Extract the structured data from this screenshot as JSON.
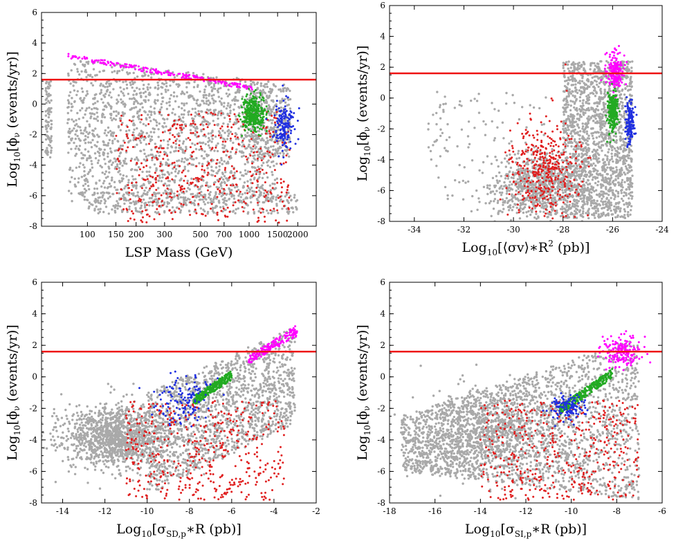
{
  "figure": {
    "colors": {
      "background": "#ffffff",
      "frame": "#000000",
      "bulk": "#a9a9a9",
      "red_points": "#e02020",
      "magenta_points": "#ff00ff",
      "green_points": "#22aa22",
      "blue_points": "#2030e0",
      "threshold_line": "#ee1111"
    }
  },
  "chart_data": [
    {
      "id": "panel-mass",
      "type": "scatter",
      "xscale": "log",
      "xlim": [
        52,
        2600
      ],
      "ylim": [
        -8,
        6
      ],
      "xticks": [
        {
          "v": 100,
          "label": "100"
        },
        {
          "v": 150,
          "label": "150"
        },
        {
          "v": 200,
          "label": "200"
        },
        {
          "v": 300,
          "label": "300"
        },
        {
          "v": 500,
          "label": "500"
        },
        {
          "v": 700,
          "label": "700"
        },
        {
          "v": 1000,
          "label": "1000"
        },
        {
          "v": 1500,
          "label": "1500"
        },
        {
          "v": 2000,
          "label": "2000"
        }
      ],
      "yticks": [
        {
          "v": -8,
          "label": "-8"
        },
        {
          "v": -6,
          "label": "-6"
        },
        {
          "v": -4,
          "label": "-4"
        },
        {
          "v": -2,
          "label": "-2"
        },
        {
          "v": 0,
          "label": "0"
        },
        {
          "v": 2,
          "label": "2"
        },
        {
          "v": 4,
          "label": "4"
        },
        {
          "v": 6,
          "label": "6"
        }
      ],
      "xlabel": "LSP Mass (GeV)",
      "ylabel_base": "Log",
      "ylabel_sub": "10",
      "ylabel_rest": "[ϕ",
      "ylabel_nu": "ν",
      "ylabel_end": " (events/yr)]",
      "threshold": 1.6,
      "series": [
        {
          "name": "bulk",
          "color_key": "bulk",
          "clusters": [
            {
              "x": [
                75,
                1500
              ],
              "y_top": [
                3.0,
                1.4
              ],
              "y_bot": [
                -6.5,
                -6.5
              ],
              "n": 1800,
              "fill": "band"
            },
            {
              "x": [
                100,
                2000
              ],
              "y": [
                -7.2,
                -5.8
              ],
              "n": 300,
              "fill": "box"
            },
            {
              "x": [
                55,
                60
              ],
              "y": [
                -3.5,
                1.5
              ],
              "n": 90,
              "fill": "box"
            },
            {
              "x": [
                1000,
                1800
              ],
              "y": [
                -3.5,
                1.3
              ],
              "n": 250,
              "fill": "box"
            }
          ]
        },
        {
          "name": "red",
          "color_key": "red_points",
          "clusters": [
            {
              "x": [
                150,
                1800
              ],
              "y": [
                -7.8,
                -0.5
              ],
              "n": 450,
              "fill": "box"
            }
          ]
        },
        {
          "name": "magenta",
          "color_key": "magenta_points",
          "clusters": [
            {
              "x": [
                75,
                1050
              ],
              "y_top": [
                3.3,
                1.2
              ],
              "y_bot": [
                3.0,
                0.9
              ],
              "n": 200,
              "fill": "band"
            }
          ]
        },
        {
          "name": "green",
          "color_key": "green_points",
          "clusters": [
            {
              "cx": 1050,
              "cy": -0.6,
              "sx": 0.035,
              "sy": 0.55,
              "n": 320,
              "fill": "gauss"
            }
          ]
        },
        {
          "name": "blue",
          "color_key": "blue_points",
          "clusters": [
            {
              "cx": 1650,
              "cy": -1.4,
              "sx": 0.03,
              "sy": 0.8,
              "n": 150,
              "fill": "gauss"
            }
          ]
        }
      ]
    },
    {
      "id": "panel-annihilation",
      "type": "scatter",
      "xscale": "linear",
      "xlim": [
        -35,
        -24
      ],
      "ylim": [
        -8,
        6
      ],
      "xticks": [
        {
          "v": -34,
          "label": "-34"
        },
        {
          "v": -32,
          "label": "-32"
        },
        {
          "v": -30,
          "label": "-30"
        },
        {
          "v": -28,
          "label": "-28"
        },
        {
          "v": -26,
          "label": "-26"
        },
        {
          "v": -24,
          "label": "-24"
        }
      ],
      "yticks": [
        {
          "v": -8,
          "label": "-8"
        },
        {
          "v": -6,
          "label": "-6"
        },
        {
          "v": -4,
          "label": "-4"
        },
        {
          "v": -2,
          "label": "-2"
        },
        {
          "v": 0,
          "label": "0"
        },
        {
          "v": 2,
          "label": "2"
        },
        {
          "v": 4,
          "label": "4"
        },
        {
          "v": 6,
          "label": "6"
        }
      ],
      "xlabel_base": "Log",
      "xlabel_sub": "10",
      "xlabel_rest": "[⟨σv⟩∗R",
      "xlabel_sup": "2",
      "xlabel_end": " (pb)]",
      "ylabel_base": "Log",
      "ylabel_sub": "10",
      "ylabel_rest": "[ϕ",
      "ylabel_nu": "ν",
      "ylabel_end": " (events/yr)]",
      "threshold": 1.6,
      "series": [
        {
          "name": "bulk",
          "color_key": "bulk",
          "clusters": [
            {
              "x": [
                -28.0,
                -25.2
              ],
              "y": [
                -7.8,
                2.4
              ],
              "n": 1700,
              "fill": "box"
            },
            {
              "cx": -29.0,
              "cy": -5.8,
              "sx": 0.9,
              "sy": 1.0,
              "n": 800,
              "fill": "gauss"
            },
            {
              "x": [
                -33.5,
                -28.5
              ],
              "y": [
                -7.0,
                0.5
              ],
              "n": 120,
              "fill": "box"
            }
          ]
        },
        {
          "name": "red",
          "color_key": "red_points",
          "clusters": [
            {
              "cx": -28.8,
              "cy": -4.5,
              "sx": 0.7,
              "sy": 1.6,
              "n": 400,
              "fill": "gauss"
            }
          ]
        },
        {
          "name": "magenta",
          "color_key": "magenta_points",
          "clusters": [
            {
              "cx": -25.9,
              "cy": 1.8,
              "sx": 0.18,
              "sy": 0.6,
              "n": 180,
              "fill": "gauss"
            }
          ]
        },
        {
          "name": "green",
          "color_key": "green_points",
          "clusters": [
            {
              "cx": -26.0,
              "cy": -0.8,
              "sx": 0.1,
              "sy": 0.6,
              "n": 280,
              "fill": "gauss"
            }
          ]
        },
        {
          "name": "blue",
          "color_key": "blue_points",
          "clusters": [
            {
              "cx": -25.3,
              "cy": -1.6,
              "sx": 0.08,
              "sy": 0.8,
              "n": 160,
              "fill": "gauss"
            }
          ]
        }
      ]
    },
    {
      "id": "panel-spin-dependent",
      "type": "scatter",
      "xscale": "linear",
      "xlim": [
        -15,
        -2
      ],
      "ylim": [
        -8,
        6
      ],
      "xticks": [
        {
          "v": -14,
          "label": "-14"
        },
        {
          "v": -12,
          "label": "-12"
        },
        {
          "v": -10,
          "label": "-10"
        },
        {
          "v": -8,
          "label": "-8"
        },
        {
          "v": -6,
          "label": "-6"
        },
        {
          "v": -4,
          "label": "-4"
        },
        {
          "v": -2,
          "label": "-2"
        }
      ],
      "yticks": [
        {
          "v": -8,
          "label": "-8"
        },
        {
          "v": -6,
          "label": "-6"
        },
        {
          "v": -4,
          "label": "-4"
        },
        {
          "v": -2,
          "label": "-2"
        },
        {
          "v": 0,
          "label": "0"
        },
        {
          "v": 2,
          "label": "2"
        },
        {
          "v": 4,
          "label": "4"
        },
        {
          "v": 6,
          "label": "6"
        }
      ],
      "xlabel_base": "Log",
      "xlabel_sub": "10",
      "xlabel_rest": "[σ",
      "xlabel_sub2": "SD,p",
      "xlabel_end": "∗R (pb)]",
      "ylabel_base": "Log",
      "ylabel_sub": "10",
      "ylabel_rest": "[ϕ",
      "ylabel_nu": "ν",
      "ylabel_end": " (events/yr)]",
      "threshold": 1.6,
      "series": [
        {
          "name": "bulk",
          "color_key": "bulk",
          "clusters": [
            {
              "cx": -11.5,
              "cy": -3.8,
              "sx": 1.3,
              "sy": 1.0,
              "n": 1300,
              "fill": "gauss"
            },
            {
              "x": [
                -10,
                -3
              ],
              "y_top": [
                -1.0,
                3.2
              ],
              "y_bot": [
                -7.5,
                -3.0
              ],
              "n": 1500,
              "fill": "band"
            }
          ]
        },
        {
          "name": "red",
          "color_key": "red_points",
          "clusters": [
            {
              "x": [
                -11,
                -3.5
              ],
              "y": [
                -7.8,
                -1.5
              ],
              "n": 450,
              "fill": "box"
            }
          ]
        },
        {
          "name": "magenta",
          "color_key": "magenta_points",
          "clusters": [
            {
              "x": [
                -5.2,
                -2.9
              ],
              "y_top": [
                1.3,
                3.3
              ],
              "y_bot": [
                0.8,
                2.6
              ],
              "n": 170,
              "fill": "band"
            }
          ]
        },
        {
          "name": "green",
          "color_key": "green_points",
          "clusters": [
            {
              "x": [
                -7.8,
                -6.0
              ],
              "y_top": [
                -1.2,
                0.4
              ],
              "y_bot": [
                -1.8,
                -0.2
              ],
              "n": 300,
              "fill": "band"
            }
          ]
        },
        {
          "name": "blue",
          "color_key": "blue_points",
          "clusters": [
            {
              "cx": -8.2,
              "cy": -1.4,
              "sx": 0.7,
              "sy": 0.9,
              "n": 130,
              "fill": "gauss"
            }
          ]
        }
      ]
    },
    {
      "id": "panel-spin-independent",
      "type": "scatter",
      "xscale": "linear",
      "xlim": [
        -18,
        -6
      ],
      "ylim": [
        -8,
        6
      ],
      "xticks": [
        {
          "v": -18,
          "label": "-18"
        },
        {
          "v": -16,
          "label": "-16"
        },
        {
          "v": -14,
          "label": "-14"
        },
        {
          "v": -12,
          "label": "-12"
        },
        {
          "v": -10,
          "label": "-10"
        },
        {
          "v": -8,
          "label": "-8"
        },
        {
          "v": -6,
          "label": "-6"
        }
      ],
      "yticks": [
        {
          "v": -8,
          "label": "-8"
        },
        {
          "v": -6,
          "label": "-6"
        },
        {
          "v": -4,
          "label": "-4"
        },
        {
          "v": -2,
          "label": "-2"
        },
        {
          "v": 0,
          "label": "0"
        },
        {
          "v": 2,
          "label": "2"
        },
        {
          "v": 4,
          "label": "4"
        },
        {
          "v": 6,
          "label": "6"
        }
      ],
      "xlabel_base": "Log",
      "xlabel_sub": "10",
      "xlabel_rest": "[σ",
      "xlabel_sub2": "SI,p",
      "xlabel_end": "∗R (pb)]",
      "ylabel_base": "Log",
      "ylabel_sub": "10",
      "ylabel_rest": "[ϕ",
      "ylabel_nu": "ν",
      "ylabel_end": " (events/yr)]",
      "threshold": 1.6,
      "series": [
        {
          "name": "bulk",
          "color_key": "bulk",
          "clusters": [
            {
              "x": [
                -17.5,
                -7.0
              ],
              "y_top": [
                -2.5,
                2.5
              ],
              "y_bot": [
                -6.0,
                -7.8
              ],
              "n": 2200,
              "fill": "band"
            },
            {
              "cx": -13.5,
              "cy": -3.5,
              "sx": 1.5,
              "sy": 1.4,
              "n": 700,
              "fill": "gauss"
            }
          ]
        },
        {
          "name": "red",
          "color_key": "red_points",
          "clusters": [
            {
              "x": [
                -14,
                -7
              ],
              "y": [
                -7.8,
                -1.5
              ],
              "n": 450,
              "fill": "box"
            }
          ]
        },
        {
          "name": "magenta",
          "color_key": "magenta_points",
          "clusters": [
            {
              "cx": -7.8,
              "cy": 1.6,
              "sx": 0.45,
              "sy": 0.5,
              "n": 180,
              "fill": "gauss"
            }
          ]
        },
        {
          "name": "green",
          "color_key": "green_points",
          "clusters": [
            {
              "x": [
                -10.5,
                -8.2
              ],
              "y_top": [
                -1.8,
                0.5
              ],
              "y_bot": [
                -2.4,
                -0.1
              ],
              "n": 300,
              "fill": "band"
            }
          ]
        },
        {
          "name": "blue",
          "color_key": "blue_points",
          "clusters": [
            {
              "cx": -10.2,
              "cy": -1.9,
              "sx": 0.4,
              "sy": 0.4,
              "n": 120,
              "fill": "gauss"
            }
          ]
        }
      ]
    }
  ]
}
